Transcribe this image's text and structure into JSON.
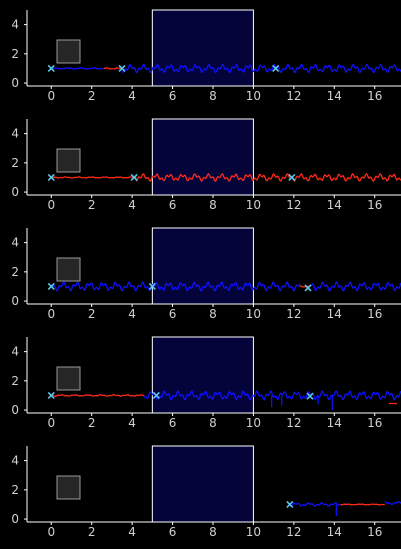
{
  "theme": {
    "background": "#000000",
    "axis_color": "#ffffff",
    "tick_label_color": "#d0d0d0",
    "span_fill": "#04043a",
    "span_edge": "#ffffff",
    "blue": "#1010ff",
    "red": "#ff2a1a",
    "marker": "#5bc8e8",
    "legend_box_fill": "#262626",
    "legend_box_edge": "#9a9a9a"
  },
  "chart_data": [
    {
      "type": "line",
      "xlim": [
        -1.2,
        17.3
      ],
      "ylim": [
        -0.2,
        5
      ],
      "xticks": [
        0,
        2,
        4,
        6,
        8,
        10,
        12,
        14,
        16
      ],
      "yticks": [
        0,
        2,
        4
      ],
      "shaded_span": [
        5,
        10
      ],
      "segments": [
        {
          "color": "blue",
          "x_start": 0,
          "x_end": 2.6,
          "baseline": 1.0,
          "amp": 0.05
        },
        {
          "color": "red",
          "x_start": 2.6,
          "x_end": 3.5,
          "baseline": 1.0,
          "amp": 0.05
        },
        {
          "color": "blue",
          "x_start": 3.5,
          "x_end": 17.3,
          "baseline": 1.0,
          "amp": 0.28
        }
      ],
      "markers": [
        {
          "x": 0,
          "y": 1.0
        },
        {
          "x": 3.5,
          "y": 1.0
        },
        {
          "x": 11.1,
          "y": 1.0
        }
      ]
    },
    {
      "type": "line",
      "xlim": [
        -1.2,
        17.3
      ],
      "ylim": [
        -0.2,
        5
      ],
      "xticks": [
        0,
        2,
        4,
        6,
        8,
        10,
        12,
        14,
        16
      ],
      "yticks": [
        0,
        2,
        4
      ],
      "shaded_span": [
        5,
        10
      ],
      "segments": [
        {
          "color": "red",
          "x_start": 0,
          "x_end": 4.2,
          "baseline": 1.0,
          "amp": 0.04
        },
        {
          "color": "red",
          "x_start": 4.2,
          "x_end": 17.3,
          "baseline": 1.0,
          "amp": 0.25
        }
      ],
      "markers": [
        {
          "x": 0,
          "y": 1.0
        },
        {
          "x": 4.1,
          "y": 1.0
        },
        {
          "x": 11.9,
          "y": 1.0
        }
      ]
    },
    {
      "type": "line",
      "xlim": [
        -1.2,
        17.3
      ],
      "ylim": [
        -0.2,
        5
      ],
      "xticks": [
        0,
        2,
        4,
        6,
        8,
        10,
        12,
        14,
        16
      ],
      "yticks": [
        0,
        2,
        4
      ],
      "shaded_span": [
        5,
        10
      ],
      "segments": [
        {
          "color": "blue",
          "x_start": 0,
          "x_end": 12.3,
          "baseline": 1.0,
          "amp": 0.3
        },
        {
          "color": "red",
          "x_start": 12.3,
          "x_end": 12.8,
          "baseline": 1.0,
          "amp": 0.05
        },
        {
          "color": "blue",
          "x_start": 12.8,
          "x_end": 17.3,
          "baseline": 1.0,
          "amp": 0.3
        }
      ],
      "markers": [
        {
          "x": 0,
          "y": 1.0
        },
        {
          "x": 5.0,
          "y": 1.0
        },
        {
          "x": 12.7,
          "y": 0.9
        }
      ]
    },
    {
      "type": "line",
      "xlim": [
        -1.2,
        17.3
      ],
      "ylim": [
        -0.2,
        5
      ],
      "xticks": [
        0,
        2,
        4,
        6,
        8,
        10,
        12,
        14,
        16
      ],
      "yticks": [
        0,
        2,
        4
      ],
      "shaded_span": [
        5,
        10
      ],
      "segments": [
        {
          "color": "red",
          "x_start": 0,
          "x_end": 4.6,
          "baseline": 1.0,
          "amp": 0.05
        },
        {
          "color": "blue",
          "x_start": 4.6,
          "x_end": 17.3,
          "baseline": 1.0,
          "amp": 0.3
        }
      ],
      "dips": [
        {
          "x": 10.9,
          "y": 0.2
        },
        {
          "x": 11.4,
          "y": 0.3
        },
        {
          "x": 13.2,
          "y": 0.4
        },
        {
          "x": 13.9,
          "y": 0.0
        }
      ],
      "dashes": [
        {
          "x1": 16.7,
          "x2": 17.1,
          "y": 0.45
        }
      ],
      "markers": [
        {
          "x": 0,
          "y": 1.0
        },
        {
          "x": 5.2,
          "y": 1.0
        },
        {
          "x": 12.8,
          "y": 0.95
        }
      ]
    },
    {
      "type": "line",
      "xlim": [
        -1.2,
        17.3
      ],
      "ylim": [
        -0.2,
        5
      ],
      "xticks": [
        0,
        2,
        4,
        6,
        8,
        10,
        12,
        14,
        16
      ],
      "yticks": [
        0,
        2,
        4
      ],
      "shaded_span": [
        5,
        10
      ],
      "segments": [
        {
          "color": "blue",
          "x_start": 11.8,
          "x_end": 14.3,
          "baseline": 1.0,
          "amp": 0.12
        },
        {
          "color": "red",
          "x_start": 14.3,
          "x_end": 16.5,
          "baseline": 1.0,
          "amp": 0.03
        },
        {
          "color": "blue",
          "x_start": 16.5,
          "x_end": 17.3,
          "baseline": 1.1,
          "amp": 0.1
        }
      ],
      "dips": [
        {
          "x": 14.1,
          "y": 0.2
        }
      ],
      "markers": [
        {
          "x": 11.8,
          "y": 1.0
        }
      ]
    }
  ]
}
